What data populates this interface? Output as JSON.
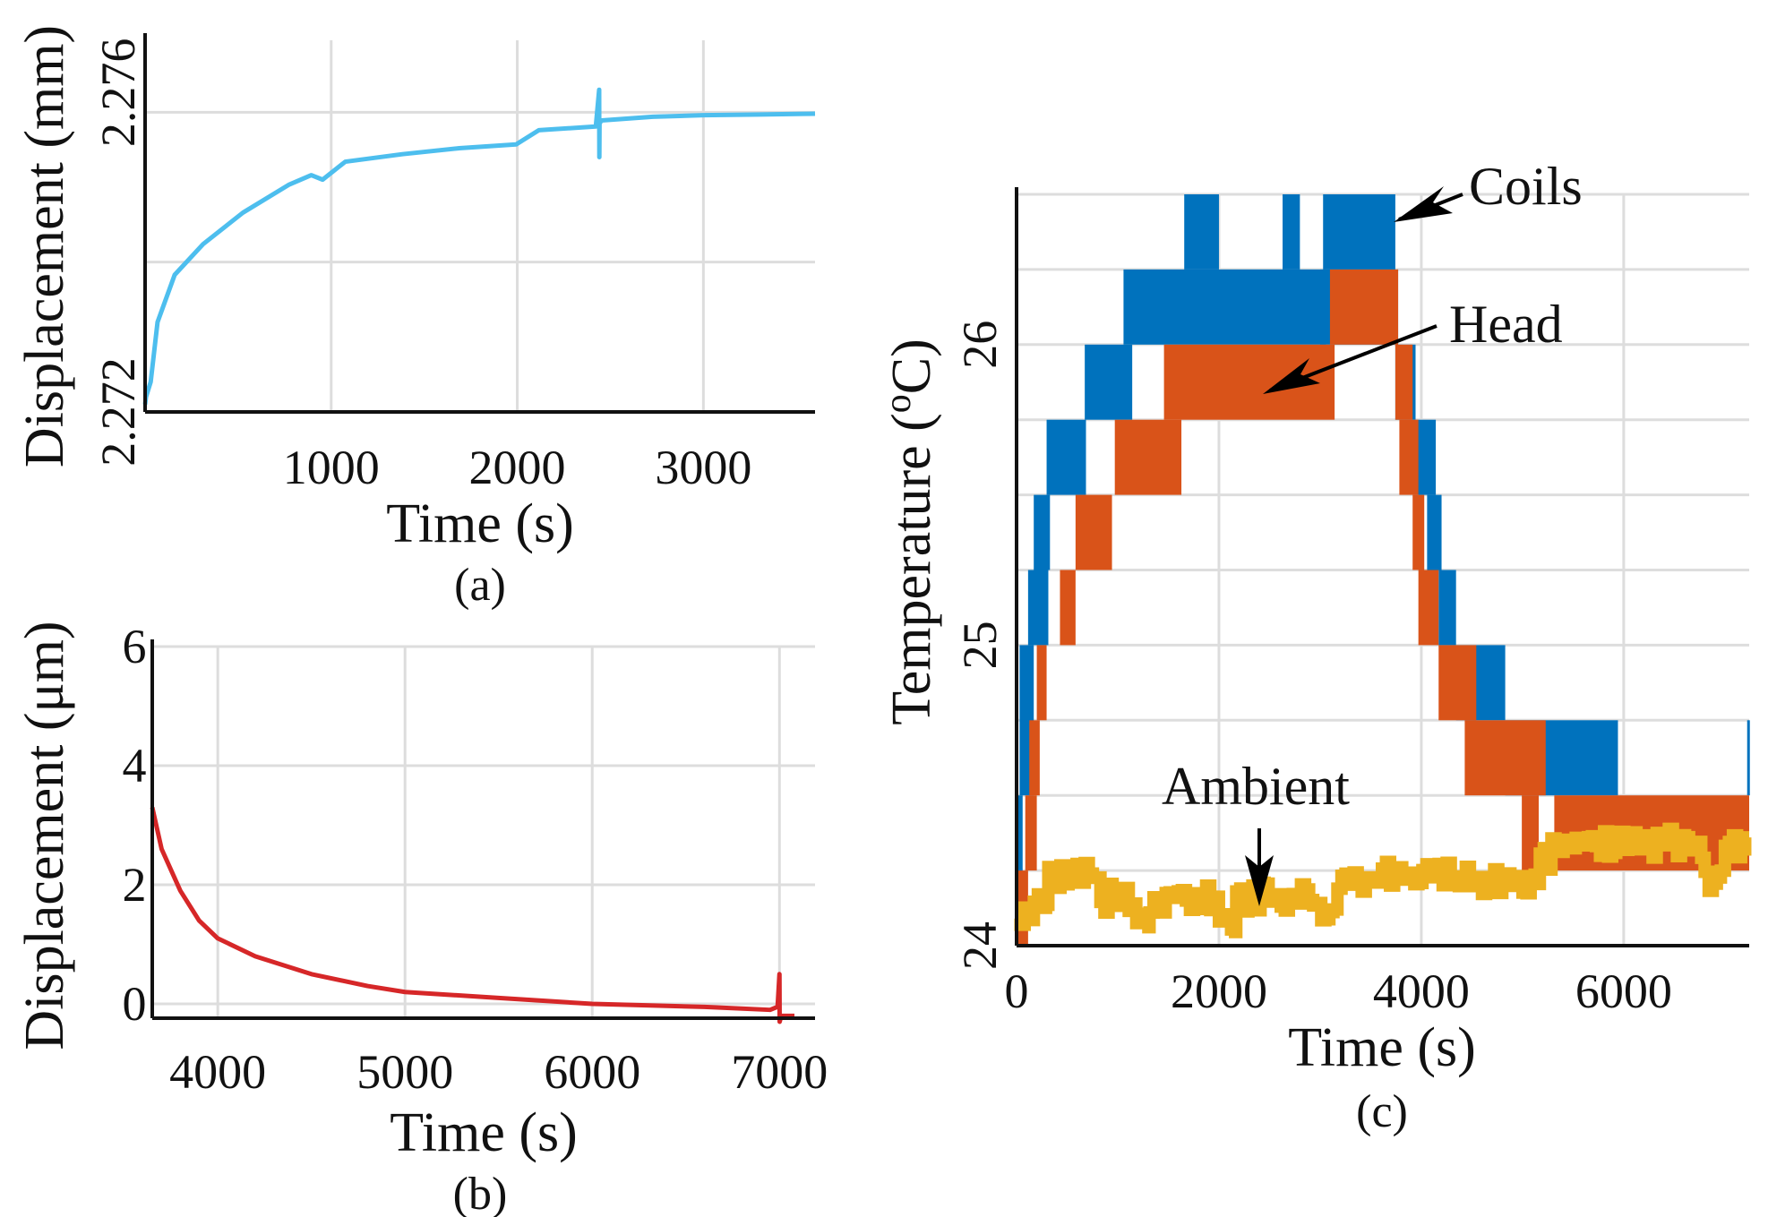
{
  "chart_data": [
    {
      "id": "a",
      "type": "line",
      "caption": "(a)",
      "xlabel": "Time (s)",
      "ylabel": "Displacement (mm)",
      "xlim": [
        0,
        3600
      ],
      "ylim": [
        2.272,
        2.27696
      ],
      "xticks": [
        1000,
        2000,
        3000
      ],
      "xtick_labels": [
        "1000",
        "2000",
        "3000"
      ],
      "yticks": [
        2.272,
        2.276
      ],
      "ytick_labels": [
        "2.272",
        "2.276"
      ],
      "ygrid": [
        2.274,
        2.276
      ],
      "color": "#4dbeee",
      "series": [
        {
          "name": "displacement",
          "x": [
            0,
            5,
            30,
            67,
            159,
            312,
            526,
            771,
            893,
            954,
            1076,
            1382,
            1688,
            1994,
            2116,
            2422,
            2440,
            2441,
            2442,
            2453,
            2728,
            3000,
            3300,
            3600
          ],
          "y": [
            2.2721,
            2.2722,
            2.2724,
            2.2732,
            2.27383,
            2.27424,
            2.27466,
            2.27503,
            2.27516,
            2.2751,
            2.27534,
            2.27544,
            2.27552,
            2.27557,
            2.27576,
            2.27581,
            2.2763,
            2.2754,
            2.27585,
            2.27589,
            2.27594,
            2.27596,
            2.27597,
            2.27598
          ]
        }
      ]
    },
    {
      "id": "b",
      "type": "line",
      "caption": "(b)",
      "xlabel": "Time (s)",
      "ylabel": "Displacement (μm)",
      "xlim": [
        3650,
        7190
      ],
      "ylim": [
        -0.24,
        6
      ],
      "xticks": [
        4000,
        5000,
        6000,
        7000
      ],
      "xtick_labels": [
        "4000",
        "5000",
        "6000",
        "7000"
      ],
      "yticks": [
        0,
        2,
        4,
        6
      ],
      "ytick_labels": [
        "0",
        "2",
        "4",
        "6"
      ],
      "color": "#d62728",
      "series": [
        {
          "name": "displacement",
          "x": [
            3650,
            3700,
            3800,
            3900,
            4000,
            4200,
            4500,
            4800,
            5000,
            5500,
            6000,
            6600,
            6950,
            6990,
            7000,
            7001,
            7010,
            7080
          ],
          "y": [
            3.3,
            2.6,
            1.9,
            1.4,
            1.1,
            0.8,
            0.5,
            0.3,
            0.2,
            0.1,
            0.0,
            -0.05,
            -0.1,
            -0.05,
            0.5,
            -0.3,
            -0.2,
            -0.2
          ]
        }
      ]
    },
    {
      "id": "c",
      "type": "area",
      "caption": "(c)",
      "xlabel": "Time (s)",
      "ylabel_parts": [
        "Temperature (",
        "o",
        "C)"
      ],
      "xlim": [
        0,
        7240
      ],
      "ylim": [
        24,
        26.5
      ],
      "xticks": [
        0,
        2000,
        4000,
        6000
      ],
      "xtick_labels": [
        "0",
        "2000",
        "4000",
        "6000"
      ],
      "yticks": [
        24,
        25,
        26
      ],
      "ytick_labels": [
        "24",
        "25",
        "26"
      ],
      "ygrid_step": 0.25,
      "series": [
        {
          "name": "Coils",
          "color": "#0072bd",
          "bands": [
            [
              0,
              60,
              24,
              24.5
            ],
            [
              30,
              170,
              24.5,
              25
            ],
            [
              114,
              314,
              25,
              25.25
            ],
            [
              170,
              330,
              25.25,
              25.5
            ],
            [
              297,
              686,
              25.5,
              25.75
            ],
            [
              674,
              1143,
              25.75,
              26
            ],
            [
              1057,
              3057,
              26,
              26.25
            ],
            [
              1657,
              2000,
              26.25,
              26.5
            ],
            [
              2629,
              2800,
              26.25,
              26.5
            ],
            [
              3029,
              3743,
              26.25,
              26.5
            ],
            [
              3000,
              3771,
              26,
              26.25
            ],
            [
              3743,
              3943,
              25.75,
              26
            ],
            [
              3943,
              4143,
              25.5,
              25.75
            ],
            [
              4057,
              4200,
              25.25,
              25.5
            ],
            [
              4171,
              4343,
              25,
              25.25
            ],
            [
              4343,
              4829,
              24.75,
              25
            ],
            [
              4829,
              5943,
              24.5,
              24.75
            ],
            [
              7220,
              7240,
              24.5,
              24.75
            ]
          ]
        },
        {
          "name": "Head",
          "color": "#d95319",
          "bands": [
            [
              0,
              114,
              24,
              24.25
            ],
            [
              86,
              200,
              24.25,
              24.5
            ],
            [
              126,
              229,
              24.5,
              24.75
            ],
            [
              200,
              297,
              24.75,
              25
            ],
            [
              429,
              583,
              25,
              25.25
            ],
            [
              583,
              943,
              25.25,
              25.5
            ],
            [
              971,
              1629,
              25.5,
              25.75
            ],
            [
              1457,
              3143,
              25.75,
              26
            ],
            [
              3097,
              3771,
              26,
              26.25
            ],
            [
              3743,
              3914,
              25.75,
              26
            ],
            [
              3783,
              3971,
              25.5,
              25.75
            ],
            [
              3914,
              4029,
              25.25,
              25.5
            ],
            [
              3971,
              4171,
              25,
              25.25
            ],
            [
              4171,
              4543,
              24.75,
              25
            ],
            [
              4429,
              5229,
              24.5,
              24.75
            ],
            [
              4993,
              5160,
              24.25,
              24.5
            ],
            [
              5314,
              7240,
              24.25,
              24.5
            ]
          ]
        },
        {
          "name": "Ambient",
          "color": "#edb120",
          "x": [
            0,
            171,
            314,
            829,
            1143,
            1314,
            2000,
            2171,
            2971,
            3171,
            3571,
            4400,
            5171,
            5286,
            6800,
            7000,
            7240
          ],
          "y": [
            24.09,
            24.16,
            24.23,
            24.16,
            24.09,
            24.16,
            24.09,
            24.16,
            24.11,
            24.22,
            24.23,
            24.22,
            24.29,
            24.34,
            24.22,
            24.34,
            24.34
          ]
        }
      ],
      "annotations": [
        "Coils",
        "Head",
        "Ambient"
      ]
    }
  ]
}
